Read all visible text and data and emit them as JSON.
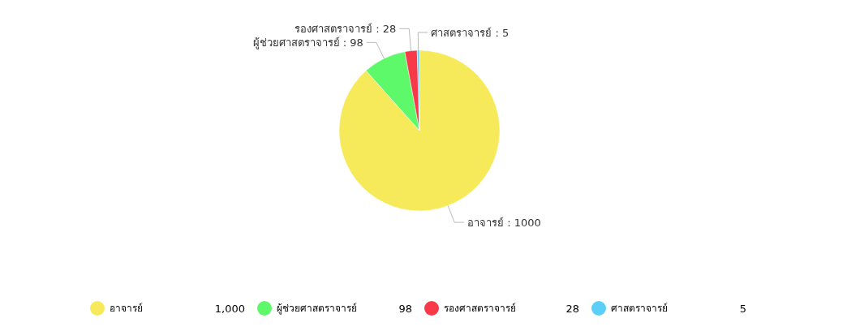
{
  "chart_data": {
    "type": "pie",
    "categories": [
      "อาจารย์",
      "ผู้ช่วยศาสตราจารย์",
      "รองศาสตราจารย์",
      "ศาสตราจารย์"
    ],
    "values": [
      1000,
      98,
      28,
      5
    ],
    "colors": [
      "#f7ea5a",
      "#5ef96a",
      "#f8394a",
      "#5bcff7"
    ],
    "value_labels": [
      "1,000",
      "98",
      "28",
      "5"
    ],
    "annotations": [
      "อาจารย์ : 1000",
      "ผู้ช่วยศาสตราจารย์ : 98",
      "รองศาสตราจารย์ : 28",
      "ศาสตราจารย์ : 5"
    ],
    "legend": "bottom"
  }
}
